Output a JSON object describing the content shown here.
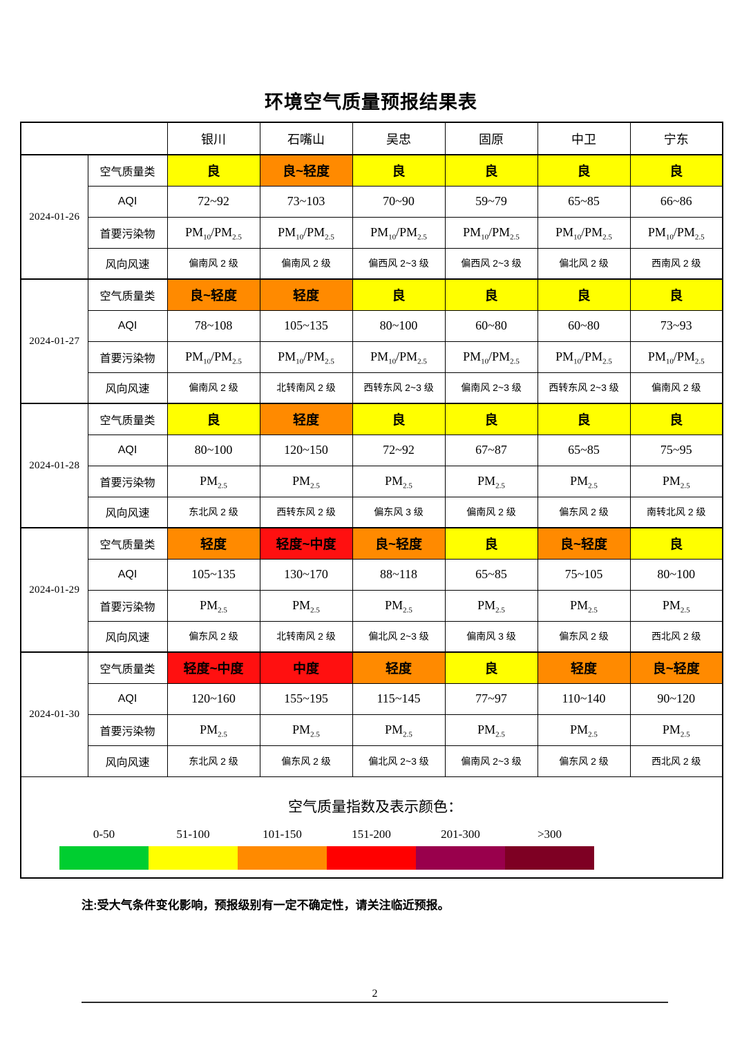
{
  "title": "环境空气质量预报结果表",
  "colors": {
    "yellow": "#FFFF00",
    "orange": "#FF8A00",
    "red": "#FF1010"
  },
  "table": {
    "cities": [
      "银川",
      "石嘴山",
      "吴忠",
      "固原",
      "中卫",
      "宁东"
    ],
    "row_labels": {
      "category": "空气质量类",
      "aqi": "AQI",
      "pollutant": "首要污染物",
      "wind": "风向风速"
    },
    "days": [
      {
        "date": "2024-01-26",
        "category": [
          {
            "text": "良",
            "level": "yellow"
          },
          {
            "text": "良~轻度",
            "level": "orange"
          },
          {
            "text": "良",
            "level": "yellow"
          },
          {
            "text": "良",
            "level": "yellow"
          },
          {
            "text": "良",
            "level": "yellow"
          },
          {
            "text": "良",
            "level": "yellow"
          }
        ],
        "aqi": [
          "72~92",
          "73~103",
          "70~90",
          "59~79",
          "65~85",
          "66~86"
        ],
        "pollutant": [
          "PM10/PM2.5",
          "PM10/PM2.5",
          "PM10/PM2.5",
          "PM10/PM2.5",
          "PM10/PM2.5",
          "PM10/PM2.5"
        ],
        "wind": [
          "偏南风 2 级",
          "偏南风 2 级",
          "偏西风 2~3 级",
          "偏西风 2~3 级",
          "偏北风 2 级",
          "西南风 2 级"
        ]
      },
      {
        "date": "2024-01-27",
        "category": [
          {
            "text": "良~轻度",
            "level": "orange"
          },
          {
            "text": "轻度",
            "level": "orange"
          },
          {
            "text": "良",
            "level": "yellow"
          },
          {
            "text": "良",
            "level": "yellow"
          },
          {
            "text": "良",
            "level": "yellow"
          },
          {
            "text": "良",
            "level": "yellow"
          }
        ],
        "aqi": [
          "78~108",
          "105~135",
          "80~100",
          "60~80",
          "60~80",
          "73~93"
        ],
        "pollutant": [
          "PM10/PM2.5",
          "PM10/PM2.5",
          "PM10/PM2.5",
          "PM10/PM2.5",
          "PM10/PM2.5",
          "PM10/PM2.5"
        ],
        "wind": [
          "偏南风 2 级",
          "北转南风 2 级",
          "西转东风 2~3 级",
          "偏南风 2~3 级",
          "西转东风 2~3 级",
          "偏南风 2 级"
        ]
      },
      {
        "date": "2024-01-28",
        "category": [
          {
            "text": "良",
            "level": "yellow"
          },
          {
            "text": "轻度",
            "level": "orange"
          },
          {
            "text": "良",
            "level": "yellow"
          },
          {
            "text": "良",
            "level": "yellow"
          },
          {
            "text": "良",
            "level": "yellow"
          },
          {
            "text": "良",
            "level": "yellow"
          }
        ],
        "aqi": [
          "80~100",
          "120~150",
          "72~92",
          "67~87",
          "65~85",
          "75~95"
        ],
        "pollutant": [
          "PM2.5",
          "PM2.5",
          "PM2.5",
          "PM2.5",
          "PM2.5",
          "PM2.5"
        ],
        "wind": [
          "东北风 2 级",
          "西转东风 2 级",
          "偏东风 3 级",
          "偏南风 2 级",
          "偏东风 2 级",
          "南转北风 2 级"
        ]
      },
      {
        "date": "2024-01-29",
        "category": [
          {
            "text": "轻度",
            "level": "orange"
          },
          {
            "text": "轻度~中度",
            "level": "red"
          },
          {
            "text": "良~轻度",
            "level": "orange"
          },
          {
            "text": "良",
            "level": "yellow"
          },
          {
            "text": "良~轻度",
            "level": "orange"
          },
          {
            "text": "良",
            "level": "yellow"
          }
        ],
        "aqi": [
          "105~135",
          "130~170",
          "88~118",
          "65~85",
          "75~105",
          "80~100"
        ],
        "pollutant": [
          "PM2.5",
          "PM2.5",
          "PM2.5",
          "PM2.5",
          "PM2.5",
          "PM2.5"
        ],
        "wind": [
          "偏东风 2 级",
          "北转南风 2 级",
          "偏北风 2~3 级",
          "偏南风 3 级",
          "偏东风 2 级",
          "西北风 2 级"
        ]
      },
      {
        "date": "2024-01-30",
        "category": [
          {
            "text": "轻度~中度",
            "level": "red"
          },
          {
            "text": "中度",
            "level": "red"
          },
          {
            "text": "轻度",
            "level": "orange"
          },
          {
            "text": "良",
            "level": "yellow"
          },
          {
            "text": "轻度",
            "level": "orange"
          },
          {
            "text": "良~轻度",
            "level": "orange"
          }
        ],
        "aqi": [
          "120~160",
          "155~195",
          "115~145",
          "77~97",
          "110~140",
          "90~120"
        ],
        "pollutant": [
          "PM2.5",
          "PM2.5",
          "PM2.5",
          "PM2.5",
          "PM2.5",
          "PM2.5"
        ],
        "wind": [
          "东北风 2 级",
          "偏东风 2 级",
          "偏北风 2~3 级",
          "偏南风 2~3 级",
          "偏东风 2 级",
          "西北风 2 级"
        ]
      }
    ]
  },
  "legend": {
    "title": "空气质量指数及表示颜色：",
    "items": [
      {
        "range": "0-50",
        "color": "#00CE30"
      },
      {
        "range": "51-100",
        "color": "#FFFF00"
      },
      {
        "range": "101-150",
        "color": "#FF8A00"
      },
      {
        "range": "151-200",
        "color": "#FF0000"
      },
      {
        "range": "201-300",
        "color": "#99004C"
      },
      {
        "range": ">300",
        "color": "#7E0023"
      }
    ]
  },
  "note": "注:受大气条件变化影响，预报级别有一定不确定性，请关注临近预报。",
  "page_number": "2"
}
